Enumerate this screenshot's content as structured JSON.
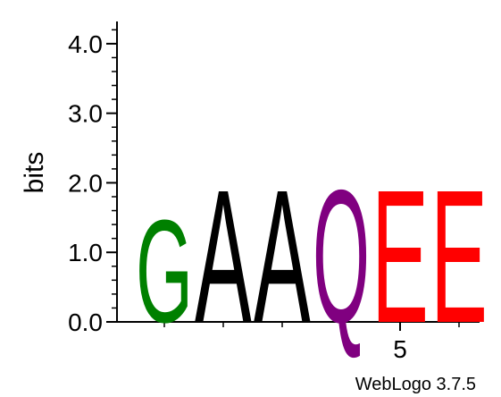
{
  "chart_data": {
    "type": "sequence-logo",
    "ylabel": "bits",
    "ylim": [
      0,
      4.32
    ],
    "y_ticks": [
      "0.0",
      "1.0",
      "2.0",
      "3.0",
      "4.0"
    ],
    "y_tick_values": [
      0,
      1,
      2,
      3,
      4
    ],
    "x_tick_labels": [
      {
        "position": 5,
        "label": "5"
      }
    ],
    "positions": [
      1,
      2,
      3,
      4,
      5,
      6
    ],
    "stacks": [
      {
        "position": 1,
        "letter": "G",
        "bits": 1.7,
        "color": "#008000"
      },
      {
        "position": 2,
        "letter": "A",
        "bits": 2.2,
        "color": "#000000"
      },
      {
        "position": 3,
        "letter": "A",
        "bits": 2.2,
        "color": "#000000"
      },
      {
        "position": 4,
        "letter": "Q",
        "bits": 2.2,
        "color": "#800080"
      },
      {
        "position": 5,
        "letter": "E",
        "bits": 2.2,
        "color": "#ff0000"
      },
      {
        "position": 6,
        "letter": "E",
        "bits": 2.2,
        "color": "#ff0000"
      }
    ]
  },
  "credit": "WebLogo 3.7.5"
}
